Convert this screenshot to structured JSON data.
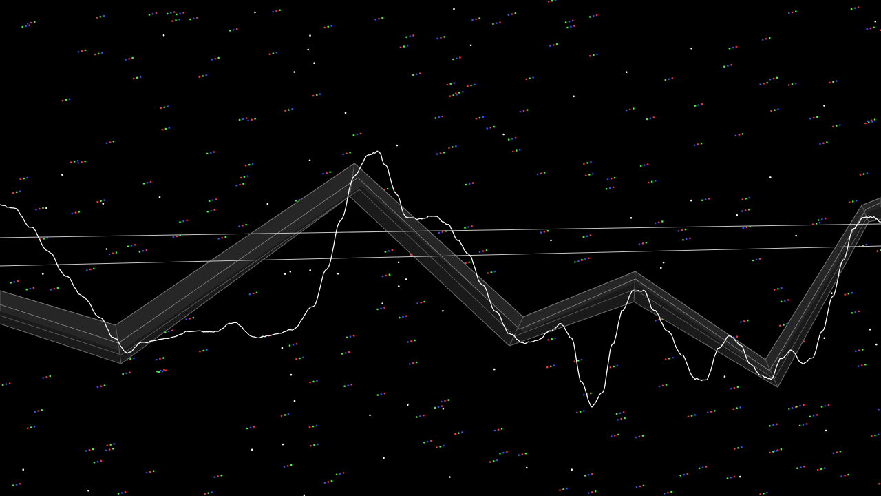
{
  "scene": {
    "background_color": "#000000",
    "track_face_color": "#2a2a2a",
    "track_edge_color": "#8c8c8c",
    "waveform_color": "#ffffff",
    "guide_line_color": "#bdbdbd",
    "star_colors": [
      "#ff3030",
      "#30ff30",
      "#3050ff",
      "#ffffff",
      "#ffff60"
    ]
  }
}
